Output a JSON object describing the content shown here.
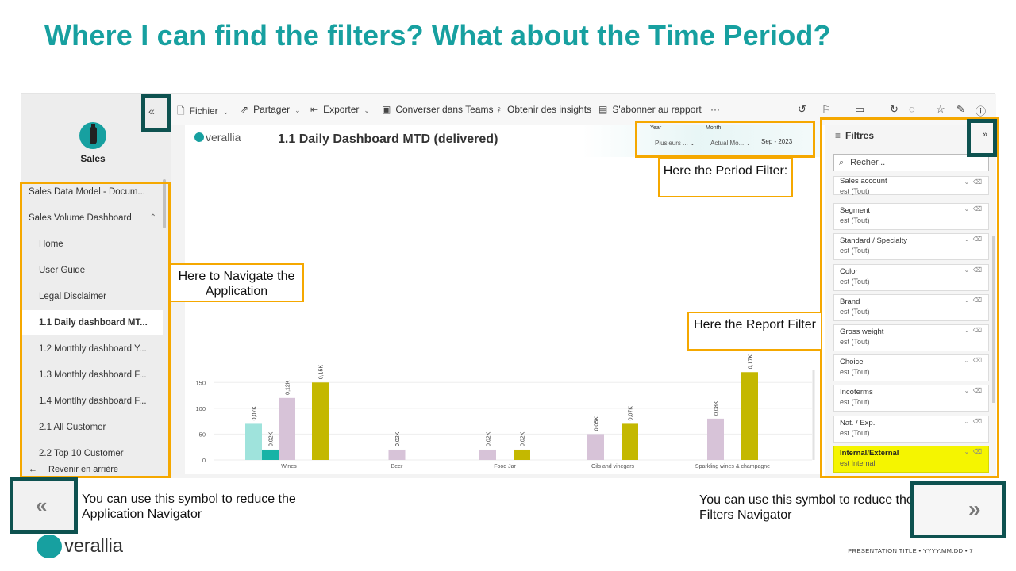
{
  "slide": {
    "title": "Where I can find the filters? What about the Time Period?",
    "footer_logo": "verallia",
    "footer_meta": "PRESENTATION TITLE  •  YYYY.MM.DD  •  7"
  },
  "nav": {
    "collapse_icon": "«",
    "app_name": "Sales",
    "items": [
      {
        "label": "Sales Data Model - Docum...",
        "level": "top"
      },
      {
        "label": "Sales Volume Dashboard",
        "level": "top",
        "caret": "⌃"
      },
      {
        "label": "Home",
        "level": "sub"
      },
      {
        "label": "User Guide",
        "level": "sub"
      },
      {
        "label": "Legal Disclaimer",
        "level": "sub"
      },
      {
        "label": "1.1 Daily dashboard MT...",
        "level": "sub",
        "active": true
      },
      {
        "label": "1.2 Monthly dashboard Y...",
        "level": "sub"
      },
      {
        "label": "1.3 Monthly dashboard F...",
        "level": "sub"
      },
      {
        "label": "1.4 Montlhy dashboard F...",
        "level": "sub"
      },
      {
        "label": "2.1 All Customer",
        "level": "sub"
      },
      {
        "label": "2.2 Top 10 Customer",
        "level": "sub"
      }
    ],
    "back_label": "Revenir en arrière"
  },
  "toolbar": {
    "file": "Fichier",
    "share": "Partager",
    "export": "Exporter",
    "teams": "Converser dans Teams",
    "insights": "Obtenir des insights",
    "subscribe": "S'abonner au rapport",
    "more": "···"
  },
  "report": {
    "logo": "verallia",
    "title": "1.1 Daily Dashboard MTD (delivered)",
    "year_label": "Year",
    "year_value": "Plusieurs ...",
    "month_label": "Month",
    "month_value": "Actual Mo...",
    "period_value": "Sep - 2023"
  },
  "filters": {
    "title": "Filtres",
    "expand_icon": "»",
    "search_placeholder": "Recher...",
    "cards": [
      {
        "name": "Sales account",
        "value": "est (Tout)"
      },
      {
        "name": "Segment",
        "value": "est (Tout)"
      },
      {
        "name": "Standard / Specialty",
        "value": "est (Tout)"
      },
      {
        "name": "Color",
        "value": "est (Tout)"
      },
      {
        "name": "Brand",
        "value": "est (Tout)"
      },
      {
        "name": "Gross weight",
        "value": "est (Tout)"
      },
      {
        "name": "Choice",
        "value": "est (Tout)"
      },
      {
        "name": "Incoterms",
        "value": "est (Tout)"
      },
      {
        "name": "Nat. / Exp.",
        "value": "est (Tout)"
      },
      {
        "name": "Internal/External",
        "value": "est Internal",
        "highlight": true
      }
    ]
  },
  "callouts": {
    "period": "Here the Period Filter:",
    "navigate": "Here to Navigate the Application",
    "report": "Here the Report Filter",
    "note_left": "You can use this symbol to reduce the Application Navigator",
    "note_right": "You can use this symbol to reduce the Filters Navigator",
    "zoom_left_icon": "«",
    "zoom_right_icon": "»"
  },
  "chart_data": {
    "type": "bar",
    "categories": [
      "Wines",
      "Beer",
      "Food Jar",
      "Oils and vinegars",
      "Sparkling wines & champagne"
    ],
    "yticks": [
      0,
      50,
      100,
      150
    ],
    "ylim": [
      0,
      175
    ],
    "series": [
      {
        "color": "#9FE3DC",
        "values": [
          70,
          null,
          null,
          null,
          null
        ],
        "labels": [
          "0,07K",
          "",
          "",
          "",
          ""
        ]
      },
      {
        "color": "#17B3A6",
        "values": [
          20,
          null,
          null,
          null,
          null
        ],
        "labels": [
          "0,02K",
          "",
          "",
          "",
          ""
        ]
      },
      {
        "color": "#D7C3D8",
        "values": [
          120,
          20,
          20,
          50,
          80
        ],
        "labels": [
          "0,12K",
          "0,02K",
          "0,02K",
          "0,05K",
          "0,08K"
        ]
      },
      {
        "color": "#C4B800",
        "values": [
          150,
          null,
          20,
          70,
          170
        ],
        "labels": [
          "0,15K",
          "",
          "0,02K",
          "0,07K",
          "0,17K"
        ]
      }
    ]
  }
}
